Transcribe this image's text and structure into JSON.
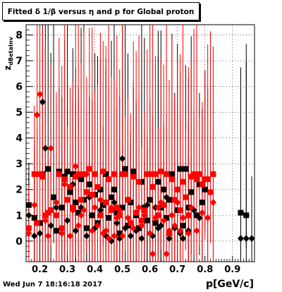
{
  "title": "Fitted δ 1/β versus η and p for Global proton",
  "ylabel": "z",
  "ylabel_sub": "dBetaInv",
  "xlabel": "p[GeV/c]",
  "footer": "Wed Jun  7 18:16:18 2017",
  "colors": {
    "black_series": "#000000",
    "red_series": "#ff0000",
    "grid": "#000000"
  },
  "chart_data": {
    "type": "scatter",
    "title": "Fitted δ 1/β versus η and p for Global proton",
    "xlabel": "p[GeV/c]",
    "ylabel": "z",
    "xlim": [
      0.15,
      0.98
    ],
    "ylim": [
      -0.8,
      8.4
    ],
    "x_ticks": [
      "0.2",
      "0.3",
      "0.4",
      "0.5",
      "0.6",
      "0.7",
      "0.8",
      "0.9"
    ],
    "y_ticks": [
      "0",
      "1",
      "2",
      "3",
      "4",
      "5",
      "6",
      "7",
      "8"
    ],
    "grid": true,
    "series": [
      {
        "marker": "square",
        "color": "#000000",
        "points": [
          [
            0.16,
            1.4
          ],
          [
            0.18,
            0.9
          ],
          [
            0.2,
            0.7
          ],
          [
            0.21,
            2.6
          ],
          [
            0.23,
            2.8
          ],
          [
            0.25,
            1.7
          ],
          [
            0.26,
            0.4
          ],
          [
            0.27,
            2.7
          ],
          [
            0.28,
            1.3
          ],
          [
            0.29,
            2.5
          ],
          [
            0.3,
            2.7
          ],
          [
            0.31,
            1.9
          ],
          [
            0.32,
            2.6
          ],
          [
            0.33,
            1.5
          ],
          [
            0.34,
            1.1
          ],
          [
            0.35,
            2.4
          ],
          [
            0.36,
            1.6
          ],
          [
            0.37,
            0.5
          ],
          [
            0.38,
            2.2
          ],
          [
            0.39,
            1.0
          ],
          [
            0.4,
            1.8
          ],
          [
            0.41,
            0.7
          ],
          [
            0.42,
            2.0
          ],
          [
            0.43,
            1.4
          ],
          [
            0.44,
            2.6
          ],
          [
            0.45,
            0.9
          ],
          [
            0.46,
            1.7
          ],
          [
            0.47,
            2.0
          ],
          [
            0.48,
            1.1
          ],
          [
            0.49,
            0.3
          ],
          [
            0.5,
            1.3
          ],
          [
            0.51,
            2.8
          ],
          [
            0.52,
            0.6
          ],
          [
            0.53,
            1.5
          ],
          [
            0.54,
            2.7
          ],
          [
            0.55,
            1.0
          ],
          [
            0.56,
            0.5
          ],
          [
            0.57,
            2.3
          ],
          [
            0.58,
            1.3
          ],
          [
            0.59,
            0.8
          ],
          [
            0.6,
            1.6
          ],
          [
            0.62,
            0.7
          ],
          [
            0.63,
            2.3
          ],
          [
            0.64,
            1.3
          ],
          [
            0.65,
            2.0
          ],
          [
            0.66,
            0.9
          ],
          [
            0.67,
            1.6
          ],
          [
            0.68,
            2.6
          ],
          [
            0.7,
            1.2
          ],
          [
            0.71,
            2.8
          ],
          [
            0.72,
            0.6
          ],
          [
            0.73,
            2.8
          ],
          [
            0.74,
            1.3
          ],
          [
            0.75,
            1.9
          ],
          [
            0.77,
            1.0
          ],
          [
            0.78,
            2.2
          ],
          [
            0.79,
            1.5
          ],
          [
            0.8,
            2.0
          ],
          [
            0.93,
            1.1
          ],
          [
            0.95,
            1.0
          ]
        ]
      },
      {
        "marker": "diamond",
        "color": "#000000",
        "points": [
          [
            0.16,
            1.0
          ],
          [
            0.18,
            0.2
          ],
          [
            0.2,
            0.3
          ],
          [
            0.21,
            5.4
          ],
          [
            0.22,
            3.6
          ],
          [
            0.24,
            0.6
          ],
          [
            0.26,
            1.3
          ],
          [
            0.28,
            0.3
          ],
          [
            0.3,
            0.8
          ],
          [
            0.32,
            2.2
          ],
          [
            0.33,
            0.4
          ],
          [
            0.35,
            1.3
          ],
          [
            0.37,
            0.2
          ],
          [
            0.38,
            1.7
          ],
          [
            0.4,
            0.5
          ],
          [
            0.42,
            1.2
          ],
          [
            0.44,
            0.2
          ],
          [
            0.46,
            0.0
          ],
          [
            0.47,
            1.5
          ],
          [
            0.48,
            0.7
          ],
          [
            0.49,
            0.1
          ],
          [
            0.5,
            3.2
          ],
          [
            0.51,
            0.5
          ],
          [
            0.52,
            1.6
          ],
          [
            0.53,
            0.2
          ],
          [
            0.55,
            0.4
          ],
          [
            0.57,
            0.1
          ],
          [
            0.58,
            0.8
          ],
          [
            0.59,
            1.4
          ],
          [
            0.6,
            0.3
          ],
          [
            0.61,
            0.2
          ],
          [
            0.62,
            1.3
          ],
          [
            0.63,
            0.5
          ],
          [
            0.64,
            0.6
          ],
          [
            0.66,
            1.7
          ],
          [
            0.67,
            0.1
          ],
          [
            0.69,
            0.5
          ],
          [
            0.71,
            0.3
          ],
          [
            0.72,
            0.1
          ],
          [
            0.74,
            0.4
          ],
          [
            0.76,
            1.2
          ],
          [
            0.78,
            0.9
          ],
          [
            0.93,
            0.1
          ],
          [
            0.95,
            0.1
          ],
          [
            0.97,
            0.1
          ]
        ]
      },
      {
        "marker": "square",
        "color": "#ff0000",
        "points": [
          [
            0.16,
            0.5
          ],
          [
            0.18,
            2.6
          ],
          [
            0.19,
            0.7
          ],
          [
            0.2,
            2.6
          ],
          [
            0.21,
            2.5
          ],
          [
            0.22,
            1.0
          ],
          [
            0.23,
            1.1
          ],
          [
            0.24,
            1.2
          ],
          [
            0.26,
            1.0
          ],
          [
            0.27,
            2.6
          ],
          [
            0.28,
            0.5
          ],
          [
            0.29,
            2.4
          ],
          [
            0.3,
            1.6
          ],
          [
            0.31,
            2.1
          ],
          [
            0.32,
            1.3
          ],
          [
            0.33,
            2.5
          ],
          [
            0.34,
            2.6
          ],
          [
            0.35,
            1.6
          ],
          [
            0.36,
            2.6
          ],
          [
            0.37,
            1.9
          ],
          [
            0.38,
            2.8
          ],
          [
            0.39,
            1.8
          ],
          [
            0.4,
            2.6
          ],
          [
            0.41,
            2.1
          ],
          [
            0.42,
            1.0
          ],
          [
            0.43,
            2.7
          ],
          [
            0.44,
            1.5
          ],
          [
            0.45,
            2.4
          ],
          [
            0.46,
            1.2
          ],
          [
            0.47,
            2.6
          ],
          [
            0.48,
            1.3
          ],
          [
            0.49,
            1.0
          ],
          [
            0.5,
            2.6
          ],
          [
            0.51,
            2.6
          ],
          [
            0.52,
            1.6
          ],
          [
            0.53,
            0.7
          ],
          [
            0.54,
            2.5
          ],
          [
            0.55,
            1.1
          ],
          [
            0.56,
            2.3
          ],
          [
            0.57,
            0.8
          ],
          [
            0.58,
            1.2
          ],
          [
            0.59,
            2.6
          ],
          [
            0.6,
            2.6
          ],
          [
            0.61,
            2.1
          ],
          [
            0.62,
            2.6
          ],
          [
            0.63,
            1.0
          ],
          [
            0.64,
            2.7
          ],
          [
            0.65,
            1.4
          ],
          [
            0.66,
            2.6
          ],
          [
            0.67,
            0.3
          ],
          [
            0.68,
            2.4
          ],
          [
            0.69,
            1.6
          ],
          [
            0.7,
            2.0
          ],
          [
            0.71,
            1.2
          ],
          [
            0.72,
            2.3
          ],
          [
            0.73,
            1.7
          ],
          [
            0.74,
            1.0
          ],
          [
            0.75,
            2.5
          ],
          [
            0.76,
            2.6
          ],
          [
            0.77,
            2.4
          ],
          [
            0.78,
            2.6
          ],
          [
            0.79,
            2.2
          ],
          [
            0.8,
            2.4
          ],
          [
            0.81,
            2.4
          ],
          [
            0.82,
            1.9
          ],
          [
            0.83,
            2.6
          ]
        ]
      },
      {
        "marker": "diamond",
        "color": "#ff0000",
        "points": [
          [
            0.16,
            0.3
          ],
          [
            0.18,
            1.4
          ],
          [
            0.19,
            4.9
          ],
          [
            0.2,
            5.7
          ],
          [
            0.21,
            2.6
          ],
          [
            0.22,
            0.8
          ],
          [
            0.23,
            0.2
          ],
          [
            0.24,
            3.6
          ],
          [
            0.26,
            1.5
          ],
          [
            0.28,
            0.3
          ],
          [
            0.29,
            2.2
          ],
          [
            0.31,
            0.2
          ],
          [
            0.32,
            1.2
          ],
          [
            0.33,
            2.9
          ],
          [
            0.34,
            0.6
          ],
          [
            0.35,
            1.0
          ],
          [
            0.36,
            1.2
          ],
          [
            0.37,
            2.6
          ],
          [
            0.39,
            0.4
          ],
          [
            0.4,
            1.3
          ],
          [
            0.41,
            0.6
          ],
          [
            0.42,
            1.6
          ],
          [
            0.43,
            0.3
          ],
          [
            0.44,
            0.4
          ],
          [
            0.45,
            0.1
          ],
          [
            0.46,
            1.3
          ],
          [
            0.47,
            0.2
          ],
          [
            0.48,
            0.9
          ],
          [
            0.49,
            1.2
          ],
          [
            0.5,
            0.2
          ],
          [
            0.52,
            0.9
          ],
          [
            0.54,
            0.5
          ],
          [
            0.56,
            1.3
          ],
          [
            0.57,
            0.6
          ],
          [
            0.58,
            1.0
          ],
          [
            0.6,
            0.3
          ],
          [
            0.61,
            -0.5
          ],
          [
            0.62,
            0.9
          ],
          [
            0.63,
            1.3
          ],
          [
            0.64,
            1.5
          ],
          [
            0.65,
            0.8
          ],
          [
            0.66,
            -0.5
          ],
          [
            0.67,
            0.4
          ],
          [
            0.68,
            1.0
          ],
          [
            0.69,
            0.6
          ],
          [
            0.7,
            1.5
          ],
          [
            0.71,
            0.4
          ],
          [
            0.72,
            0.9
          ],
          [
            0.74,
            0.3
          ],
          [
            0.75,
            1.3
          ],
          [
            0.77,
            0.4
          ],
          [
            0.79,
            1.1
          ],
          [
            0.81,
            0.9
          ],
          [
            0.83,
            1.5
          ]
        ]
      }
    ]
  }
}
